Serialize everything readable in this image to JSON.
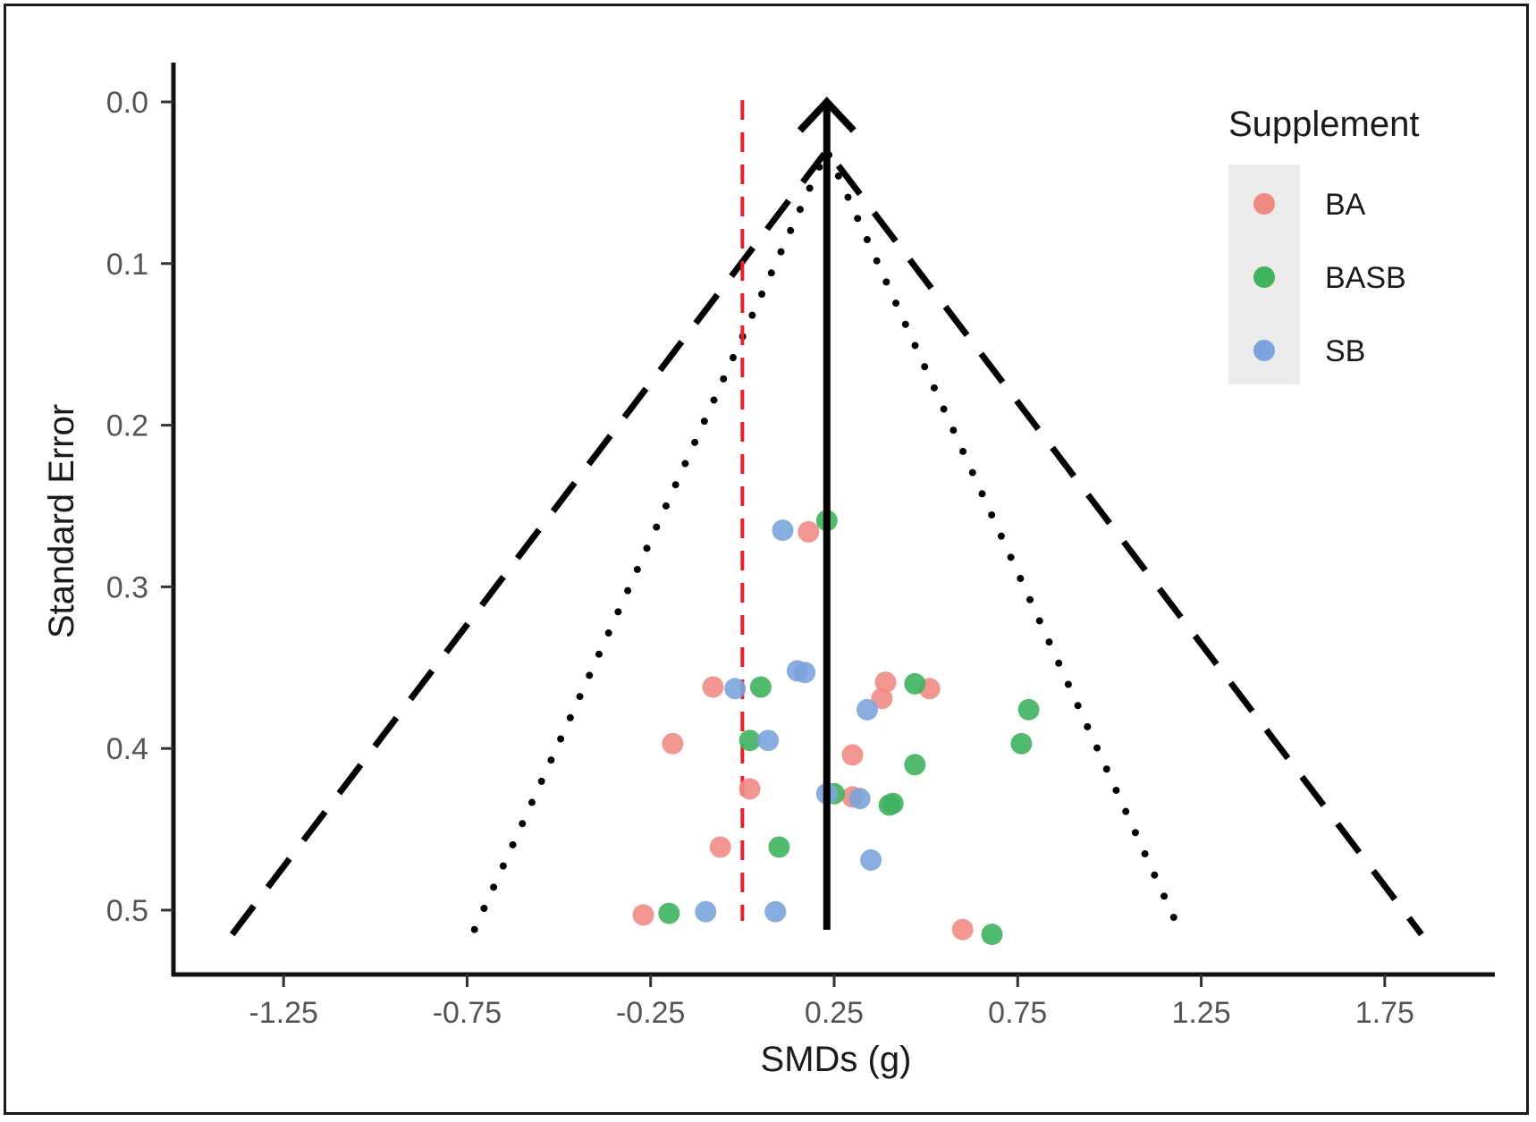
{
  "chart_data": {
    "type": "scatter",
    "title": "",
    "xlabel": "SMDs (g)",
    "ylabel": "Standard Error",
    "xlim": [
      -1.55,
      2.05
    ],
    "ylim": [
      0.0,
      0.54
    ],
    "y_reversed": true,
    "x_ticks": [
      -1.25,
      -0.75,
      -0.25,
      0.25,
      0.75,
      1.25,
      1.75
    ],
    "x_tick_labels": [
      "-1.25",
      "-0.75",
      "-0.25",
      "0.25",
      "0.75",
      "1.25",
      "1.75"
    ],
    "y_ticks": [
      0.0,
      0.1,
      0.2,
      0.3,
      0.4,
      0.5
    ],
    "y_tick_labels": [
      "0.0",
      "0.1",
      "0.2",
      "0.3",
      "0.4",
      "0.5"
    ],
    "grid": false,
    "legend": {
      "title": "Supplement",
      "position": "top-right"
    },
    "summary_effect": 0.23,
    "reference_line": {
      "x": 0.0,
      "style": "dashed",
      "color": "#e8202a"
    },
    "funnel_outer": {
      "style": "dashed",
      "points": [
        [
          -1.39,
          0.515
        ],
        [
          0.23,
          0.03
        ],
        [
          1.85,
          0.515
        ]
      ]
    },
    "funnel_inner": {
      "style": "dotted",
      "points": [
        [
          -0.73,
          0.512
        ],
        [
          0.23,
          0.03
        ],
        [
          1.19,
          0.512
        ]
      ]
    },
    "series": [
      {
        "name": "BA",
        "color": "#f08b84",
        "points": [
          {
            "x": 0.18,
            "y": 0.266
          },
          {
            "x": -0.08,
            "y": 0.362
          },
          {
            "x": 0.39,
            "y": 0.359
          },
          {
            "x": 0.38,
            "y": 0.369
          },
          {
            "x": 0.51,
            "y": 0.363
          },
          {
            "x": -0.19,
            "y": 0.397
          },
          {
            "x": 0.3,
            "y": 0.404
          },
          {
            "x": 0.02,
            "y": 0.425
          },
          {
            "x": 0.3,
            "y": 0.43
          },
          {
            "x": -0.06,
            "y": 0.461
          },
          {
            "x": -0.27,
            "y": 0.503
          },
          {
            "x": 0.6,
            "y": 0.512
          }
        ]
      },
      {
        "name": "BASB",
        "color": "#3fb35e",
        "points": [
          {
            "x": 0.23,
            "y": 0.259
          },
          {
            "x": 0.05,
            "y": 0.362
          },
          {
            "x": 0.47,
            "y": 0.36
          },
          {
            "x": 0.78,
            "y": 0.376
          },
          {
            "x": 0.02,
            "y": 0.395
          },
          {
            "x": 0.76,
            "y": 0.397
          },
          {
            "x": 0.47,
            "y": 0.41
          },
          {
            "x": 0.25,
            "y": 0.428
          },
          {
            "x": 0.41,
            "y": 0.434
          },
          {
            "x": 0.4,
            "y": 0.435
          },
          {
            "x": 0.1,
            "y": 0.461
          },
          {
            "x": -0.2,
            "y": 0.502
          },
          {
            "x": 0.68,
            "y": 0.515
          }
        ]
      },
      {
        "name": "SB",
        "color": "#7ba4dc",
        "points": [
          {
            "x": 0.11,
            "y": 0.265
          },
          {
            "x": 0.15,
            "y": 0.352
          },
          {
            "x": 0.17,
            "y": 0.353
          },
          {
            "x": -0.02,
            "y": 0.363
          },
          {
            "x": 0.34,
            "y": 0.376
          },
          {
            "x": 0.07,
            "y": 0.395
          },
          {
            "x": 0.23,
            "y": 0.428
          },
          {
            "x": 0.32,
            "y": 0.431
          },
          {
            "x": 0.35,
            "y": 0.469
          },
          {
            "x": -0.1,
            "y": 0.501
          },
          {
            "x": 0.09,
            "y": 0.501
          }
        ]
      }
    ]
  }
}
